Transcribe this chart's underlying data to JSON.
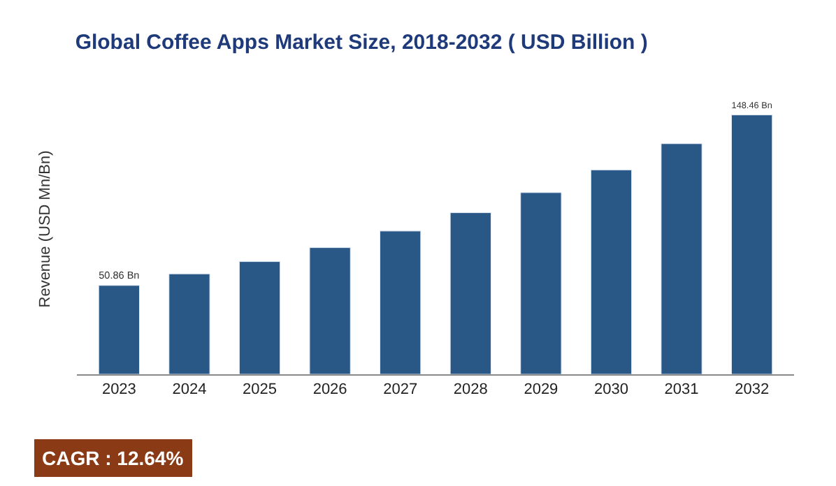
{
  "chart_data": {
    "type": "bar",
    "title": "Global Coffee Apps Market Size, 2018-2032 ( USD Billion )",
    "ylabel": "Revenue (USD Mn/Bn)",
    "categories": [
      "2023",
      "2024",
      "2025",
      "2026",
      "2027",
      "2028",
      "2029",
      "2030",
      "2031",
      "2032"
    ],
    "values": [
      50.86,
      57.5,
      64.5,
      72.5,
      82,
      92.5,
      104,
      117,
      132,
      148.46
    ],
    "value_labels": [
      "50.86 Bn",
      null,
      null,
      null,
      null,
      null,
      null,
      null,
      null,
      "148.46 Bn"
    ],
    "color": "#2a5886",
    "annotations": [
      "CAGR : 12.64%"
    ]
  }
}
